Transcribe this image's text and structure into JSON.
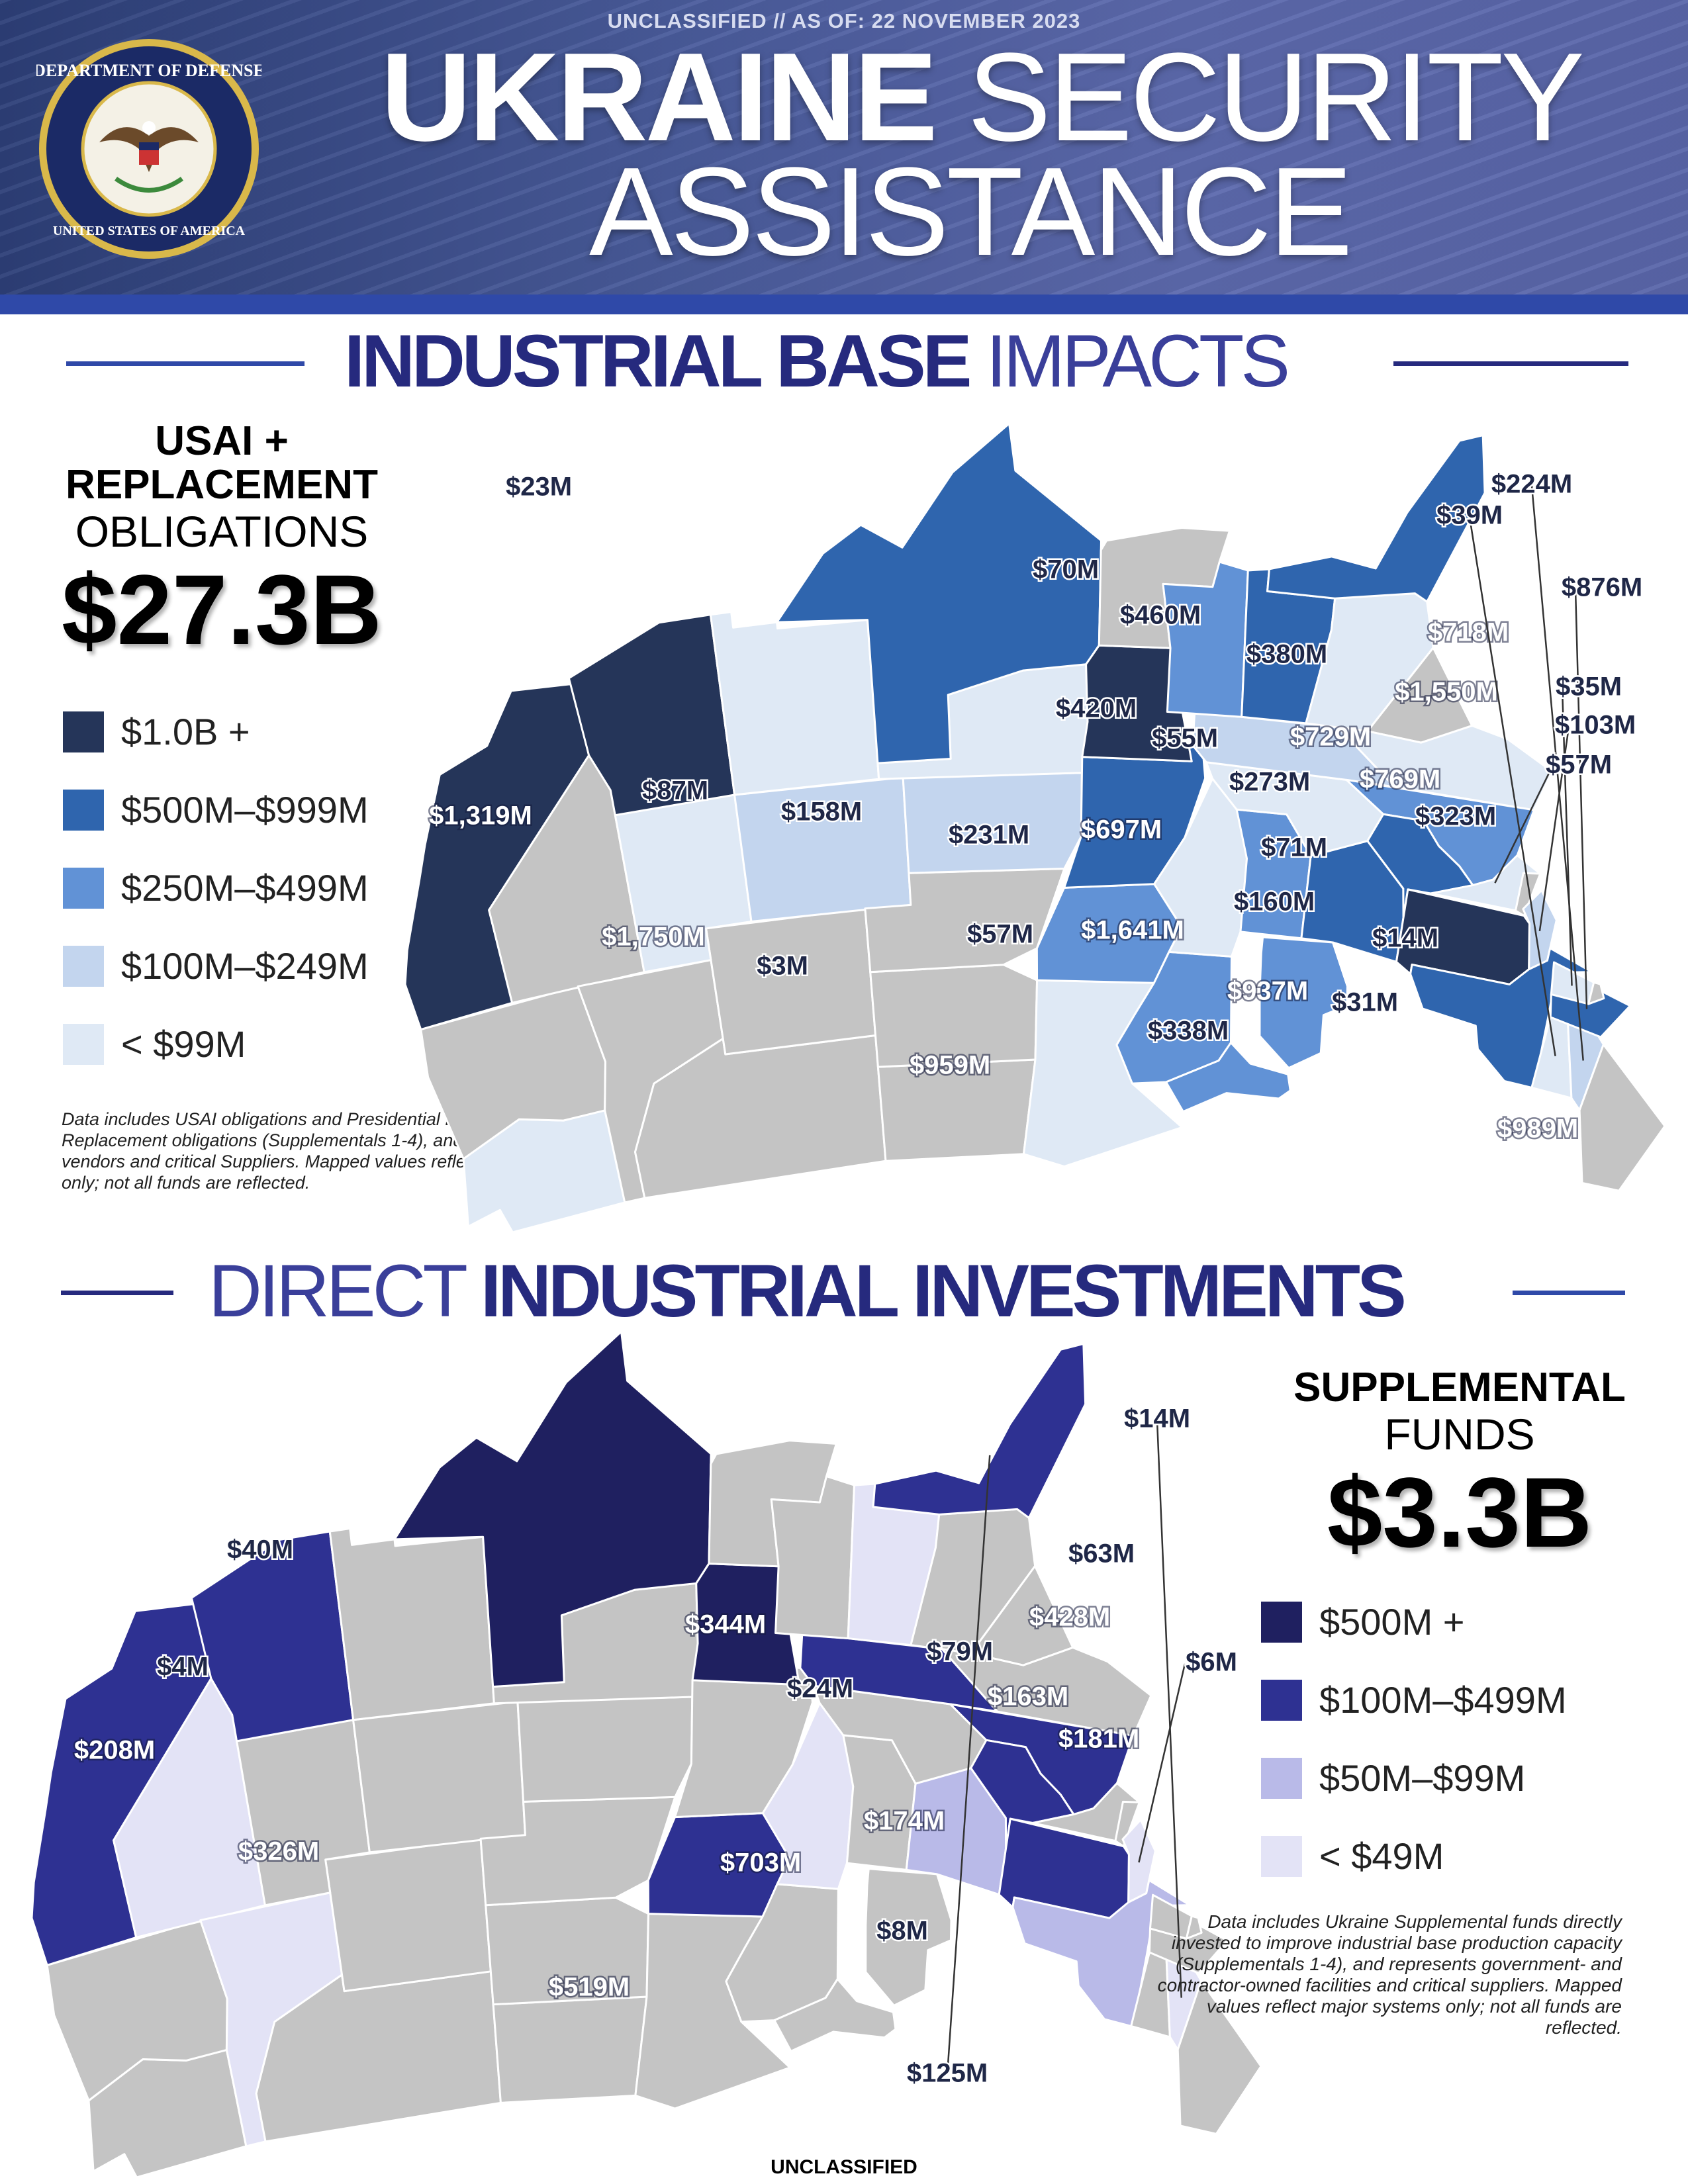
{
  "header": {
    "classification": "UNCLASSIFIED // AS OF: 22 NOVEMBER 2023",
    "title_bold": "UKRAINE",
    "title_light": "SECURITY",
    "title_line2": "ASSISTANCE",
    "seal_text_top": "DEPARTMENT OF DEFENSE",
    "seal_text_bottom": "UNITED STATES OF AMERICA"
  },
  "section1": {
    "heading_bold": "INDUSTRIAL BASE",
    "heading_light": "IMPACTS",
    "summary_line1": "USAI +",
    "summary_line2": "REPLACEMENT",
    "summary_line3": "OBLIGATIONS",
    "total": "$27.3B",
    "legend": [
      {
        "label": "$1.0B +",
        "min": 1000,
        "color": "#253559"
      },
      {
        "label": "$500M–$999M",
        "min": 500,
        "color": "#2f65ae"
      },
      {
        "label": "$250M–$499M",
        "min": 250,
        "color": "#6192d6"
      },
      {
        "label": "$100M–$249M",
        "min": 100,
        "color": "#c3d5ee"
      },
      {
        "label": "< $99M",
        "min": 0,
        "color": "#dfe9f5"
      }
    ],
    "note": "Data includes USAI obligations and Presidential Drawdown Replacement obligations (Supplementals 1-4), and represents prime vendors and critical Suppliers. Mapped values reflect major systems only; not all funds are reflected.",
    "states": {
      "WA": "$23M",
      "MN": "$70M",
      "WI": "$460M",
      "MI": "$380M",
      "IA": "$420M",
      "IL": "$55M",
      "IN": "$273M",
      "OH": "$729M",
      "PA": "$1,550M",
      "NY": "$718M",
      "VT": "$39M",
      "NH": "$224M",
      "MA": "$876M",
      "CT": "$35M",
      "NJ": "$103M",
      "MD": "$57M",
      "WV": "$769M",
      "VA": "$323M",
      "KY": "$71M",
      "TN": "$160M",
      "NC": "$14M",
      "GA": "$31M",
      "AL": "$937M",
      "MS": "$338M",
      "FL": "$989M",
      "TX": "$959M",
      "OK": "$57M",
      "KS": "$231M",
      "CO": "$158M",
      "UT": "$87M",
      "NM": "$3M",
      "AZ": "$1,750M",
      "CA": "$1,319M",
      "MO": "$697M",
      "AR": "$1,641M"
    }
  },
  "section2": {
    "heading_light": "DIRECT",
    "heading_bold": "INDUSTRIAL INVESTMENTS",
    "summary_line1": "SUPPLEMENTAL",
    "summary_line2": "FUNDS",
    "total": "$3.3B",
    "legend": [
      {
        "label": "$500M +",
        "min": 500,
        "color": "#1f2060"
      },
      {
        "label": "$100M–$499M",
        "min": 100,
        "color": "#2e3192"
      },
      {
        "label": "$50M–$99M",
        "min": 50,
        "color": "#b9bae8"
      },
      {
        "label": "< $49M",
        "min": 0,
        "color": "#e3e3f6"
      }
    ],
    "note": "Data includes Ukraine Supplemental funds directly invested to improve industrial base production capacity (Supplementals 1-4), and represents government- and contractor-owned facilities and critical suppliers. Mapped values reflect major systems only; not all funds are reflected.",
    "states": {
      "ID": "$40M",
      "NV": "$4M",
      "CA": "$208M",
      "AZ": "$326M",
      "TX": "$519M",
      "AR": "$703M",
      "IA": "$344M",
      "IL": "$24M",
      "OH": "$79M",
      "PA": "$428M",
      "NY": "$63M",
      "NH": "$14M",
      "NJ": "$6M",
      "WV": "$163M",
      "VA": "$181M",
      "TN": "$174M",
      "AL": "$8M",
      "FL": "$125M"
    }
  },
  "colors": {
    "no_data": "#c4c4c4",
    "label_dark": "#1f2747",
    "accent_blue": "#2f49a8",
    "navy": "#262a7e"
  },
  "footer": {
    "classification": "UNCLASSIFIED"
  }
}
